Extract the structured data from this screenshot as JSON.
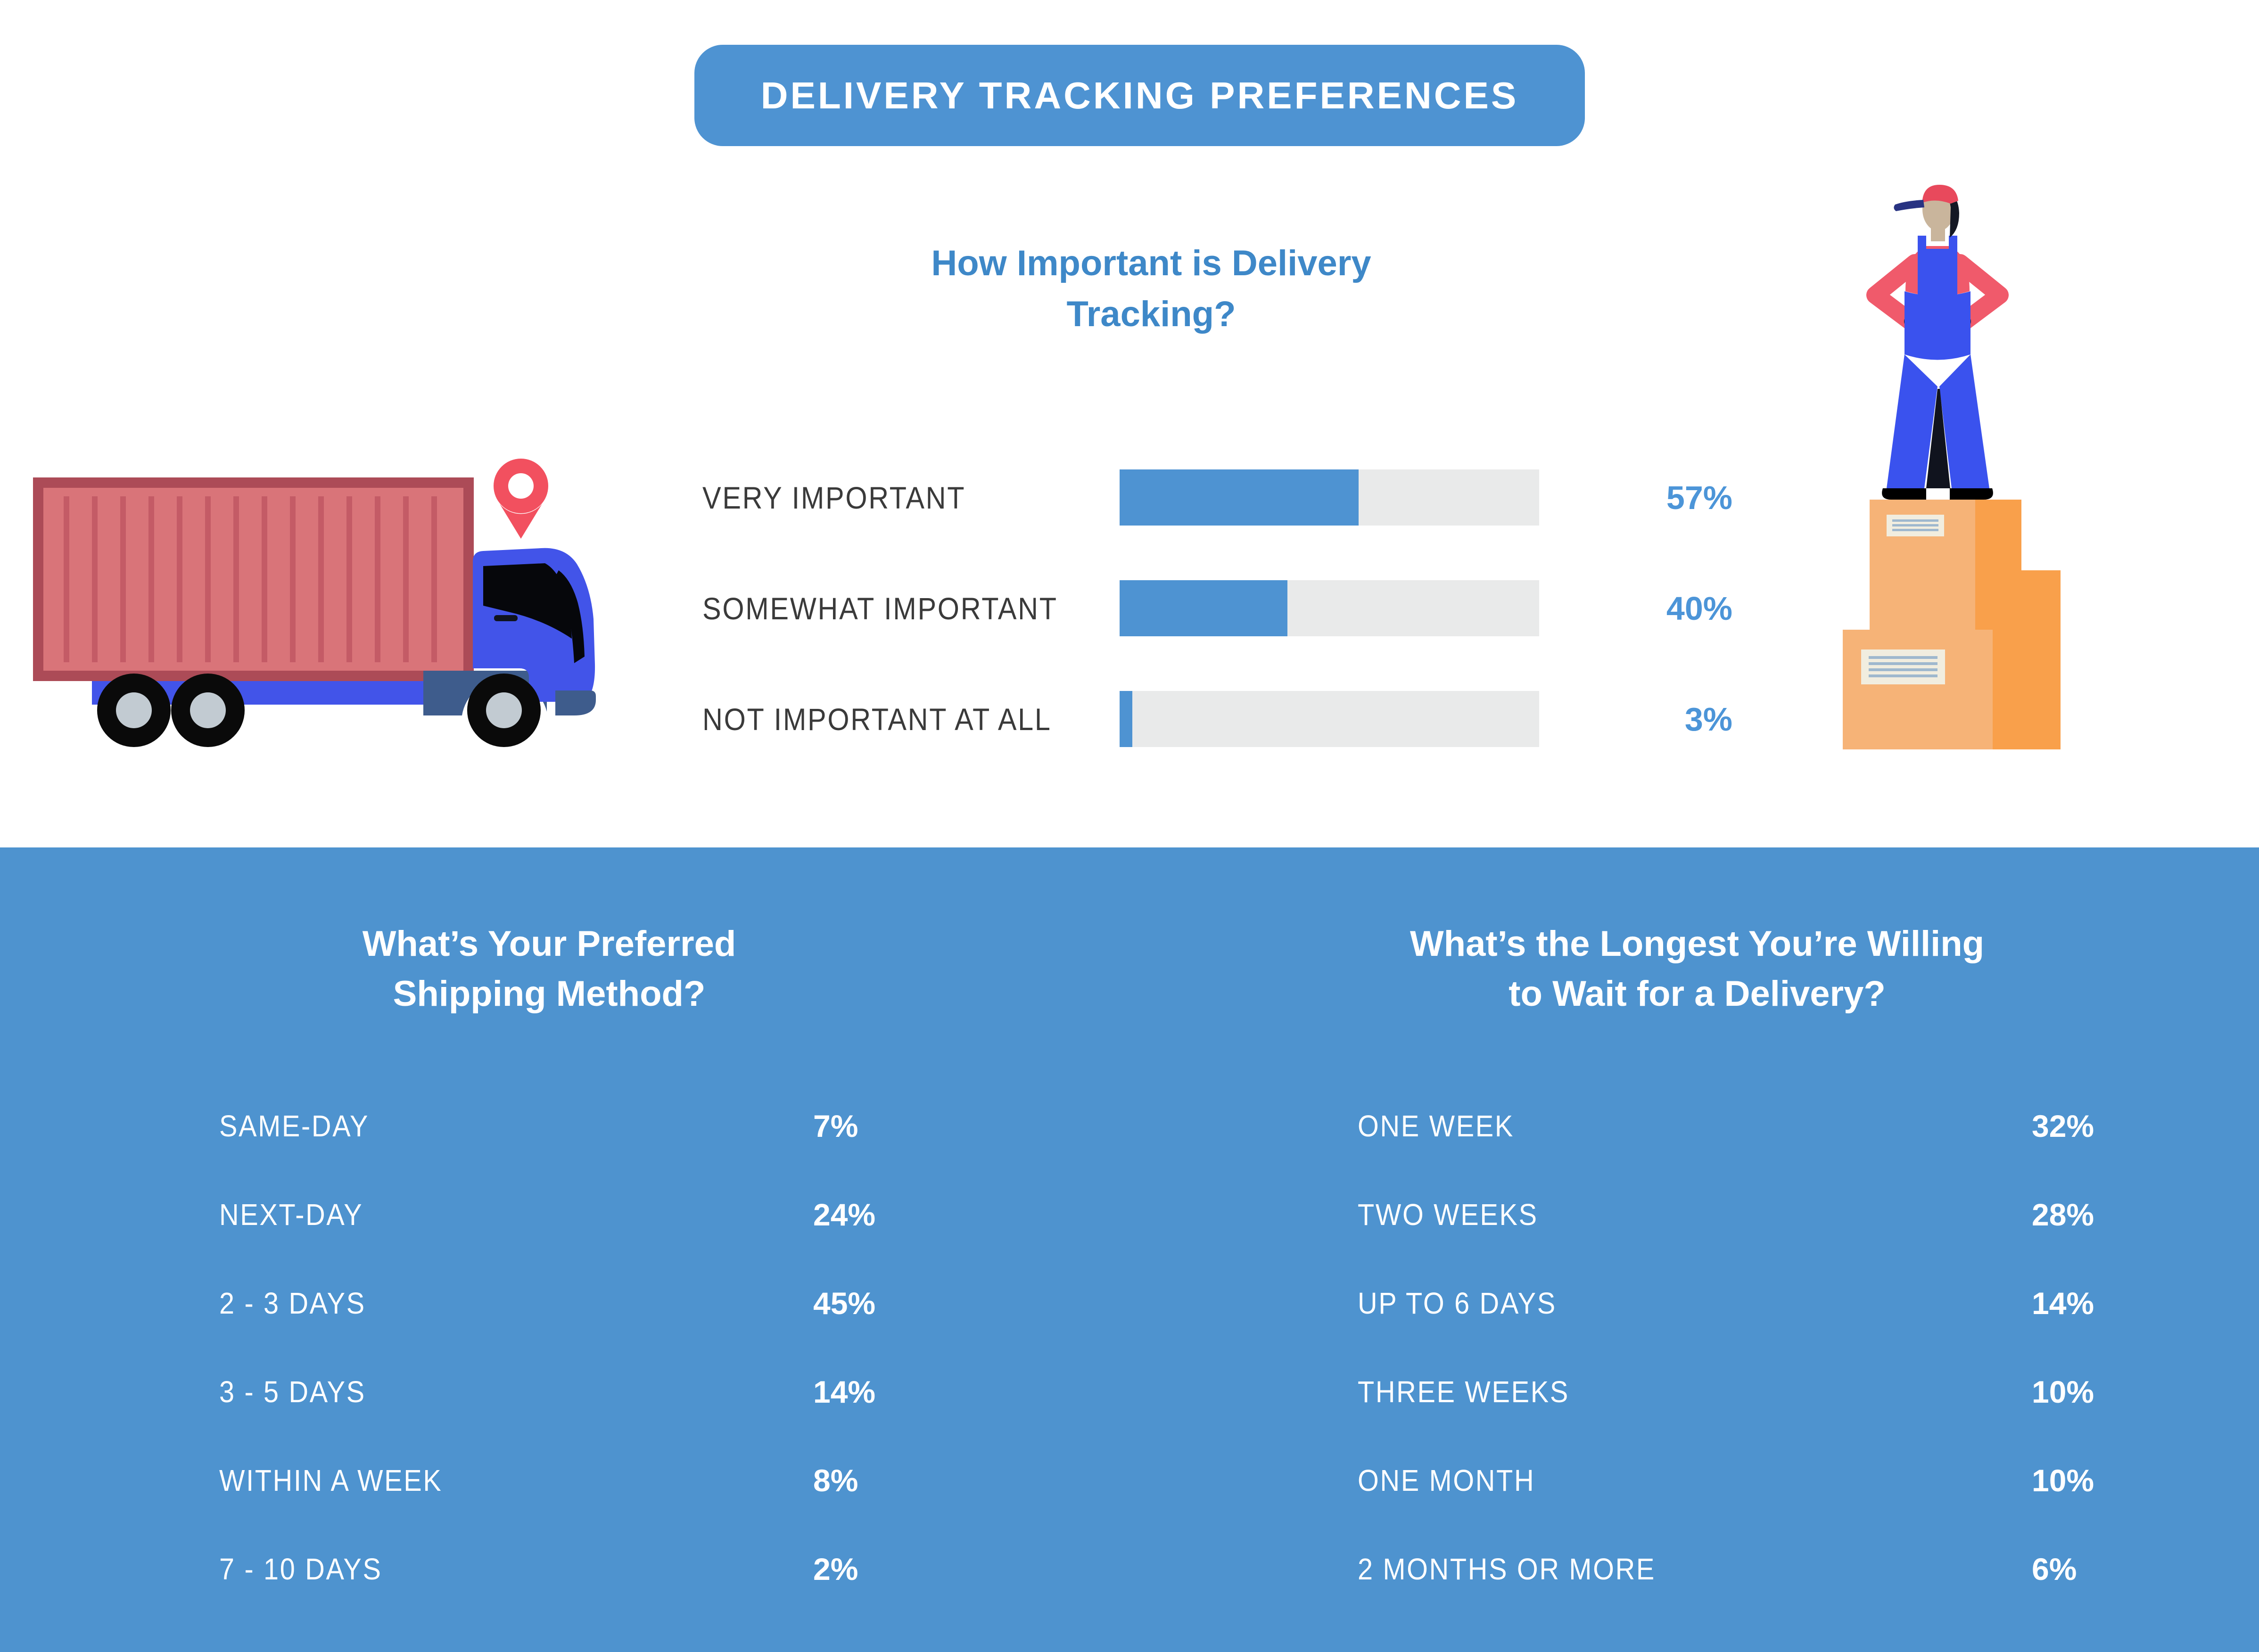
{
  "banner": {
    "label": "DELIVERY TRACKING PREFERENCES"
  },
  "importance_chart": {
    "title_line1": "How Important is Delivery",
    "title_line2": "Tracking?",
    "rows": [
      {
        "label": "VERY IMPORTANT",
        "value": 57,
        "pct": "57%"
      },
      {
        "label": "SOMEWHAT IMPORTANT",
        "value": 40,
        "pct": "40%"
      },
      {
        "label": "NOT IMPORTANT AT ALL",
        "value": 3,
        "pct": "3%"
      }
    ]
  },
  "shipping_method": {
    "title_line1": "What’s Your Preferred",
    "title_line2": "Shipping Method?",
    "rows": [
      {
        "label": "SAME-DAY",
        "pct": "7%"
      },
      {
        "label": "NEXT-DAY",
        "pct": "24%"
      },
      {
        "label": "2 - 3 DAYS",
        "pct": "45%"
      },
      {
        "label": "3 - 5 DAYS",
        "pct": "14%"
      },
      {
        "label": "WITHIN A WEEK",
        "pct": "8%"
      },
      {
        "label": "7 - 10 DAYS",
        "pct": "2%"
      }
    ]
  },
  "wait_time": {
    "title_line1": "What’s the Longest You’re Willing",
    "title_line2": "to Wait for a Delivery?",
    "rows": [
      {
        "label": "ONE WEEK",
        "pct": "32%"
      },
      {
        "label": "TWO WEEKS",
        "pct": "28%"
      },
      {
        "label": "UP TO 6 DAYS",
        "pct": "14%"
      },
      {
        "label": "THREE WEEKS",
        "pct": "10%"
      },
      {
        "label": "ONE MONTH",
        "pct": "10%"
      },
      {
        "label": "2 MONTHS OR MORE",
        "pct": "6%"
      }
    ]
  },
  "illustrations": {
    "truck_icon": "delivery-truck-with-location-pin",
    "worker_icon": "delivery-worker-standing-on-boxes"
  },
  "colors": {
    "banner_blue": "#4E93D2",
    "section_blue": "#4E93CF",
    "heading_blue": "#3E88C8",
    "value_blue": "#4C95D8",
    "track_gray": "#E9EAEA",
    "label_dark": "#3A3A3A",
    "container_red": "#D97479",
    "container_border_red": "#AC4B57",
    "cab_blue": "#4254E9",
    "fender_steel_blue": "#3E5C8C",
    "pin_red": "#F2505F",
    "box_orange_light": "#F6B377",
    "box_orange_dark": "#F9A04B",
    "overalls_blue": "#3A52EE",
    "shirt_red": "#F05A6B",
    "skin": "#C9B59C"
  },
  "chart_data": [
    {
      "type": "bar",
      "orientation": "horizontal",
      "title": "How Important is Delivery Tracking?",
      "categories": [
        "VERY IMPORTANT",
        "SOMEWHAT IMPORTANT",
        "NOT IMPORTANT AT ALL"
      ],
      "values": [
        57,
        40,
        3
      ],
      "value_labels": [
        "57%",
        "40%",
        "3%"
      ],
      "unit": "percent",
      "xlim": [
        0,
        100
      ],
      "bar_color": "#4E93D2",
      "track_color": "#E9EAEA",
      "grid": false,
      "legend": false
    },
    {
      "type": "table",
      "title": "What’s Your Preferred Shipping Method?",
      "categories": [
        "SAME-DAY",
        "NEXT-DAY",
        "2 - 3 DAYS",
        "3 - 5 DAYS",
        "WITHIN A WEEK",
        "7 - 10 DAYS"
      ],
      "values": [
        7,
        24,
        45,
        14,
        8,
        2
      ],
      "unit": "percent"
    },
    {
      "type": "table",
      "title": "What’s the Longest You’re Willing to Wait for a Delivery?",
      "categories": [
        "ONE WEEK",
        "TWO WEEKS",
        "UP TO 6 DAYS",
        "THREE WEEKS",
        "ONE MONTH",
        "2 MONTHS OR MORE"
      ],
      "values": [
        32,
        28,
        14,
        10,
        10,
        6
      ],
      "unit": "percent"
    }
  ]
}
